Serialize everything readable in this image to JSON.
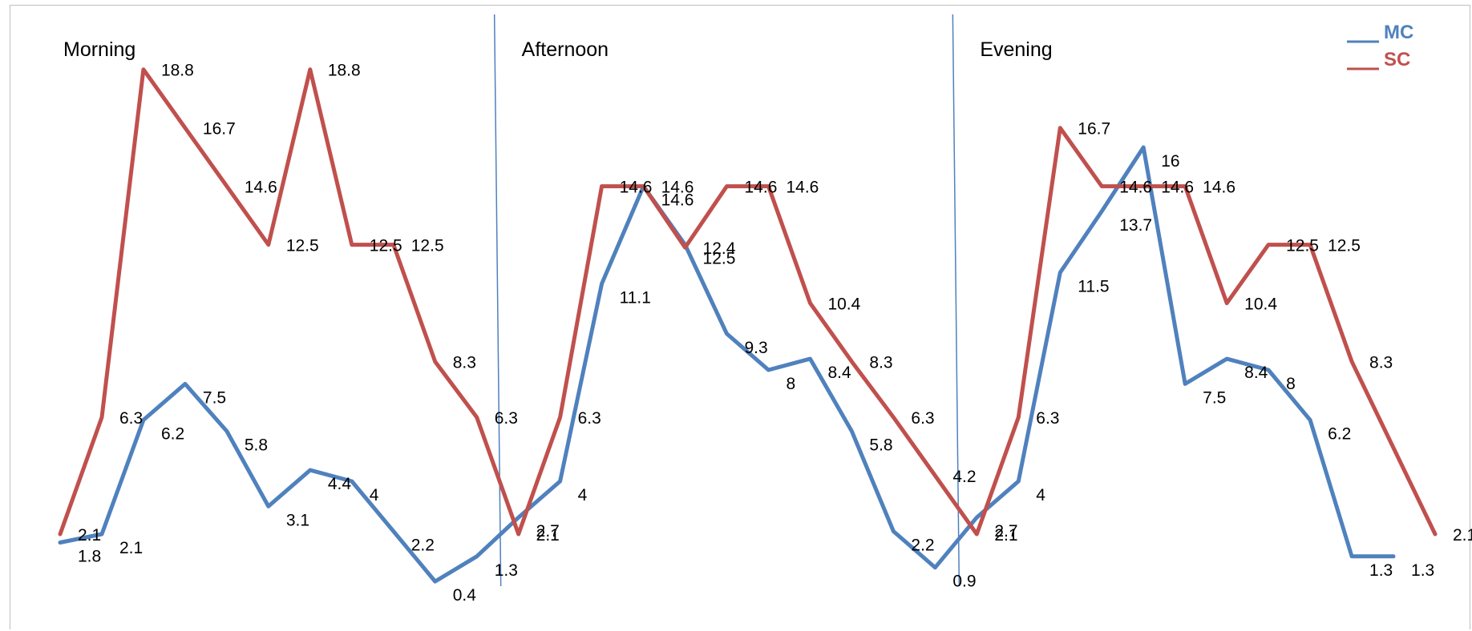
{
  "chart_data": {
    "type": "line",
    "x": [
      1,
      2,
      3,
      4,
      5,
      6,
      7,
      8,
      9,
      10,
      11,
      12,
      13,
      14,
      15,
      16,
      17,
      18,
      19,
      20,
      21,
      22,
      23,
      24,
      25,
      26,
      27,
      28,
      29,
      30,
      31,
      32,
      33,
      34
    ],
    "segments": [
      {
        "label": "Morning",
        "start": 1,
        "end": 11
      },
      {
        "label": "Afternoon",
        "start": 12,
        "end": 22
      },
      {
        "label": "Evening",
        "start": 23,
        "end": 34
      }
    ],
    "series": [
      {
        "name": "MC",
        "color": "#4f81bd",
        "values": [
          1.8,
          2.1,
          6.2,
          7.5,
          5.8,
          3.1,
          4.4,
          4,
          2.2,
          0.4,
          1.3,
          2.7,
          4,
          11.1,
          14.6,
          12.5,
          9.3,
          8,
          8.4,
          5.8,
          2.2,
          0.9,
          2.7,
          4,
          11.5,
          13.7,
          16,
          7.5,
          8.4,
          8,
          6.2,
          1.3,
          1.3
        ],
        "x": [
          1,
          2,
          3,
          4,
          5,
          6,
          7,
          8,
          9,
          10,
          11,
          12,
          13,
          14,
          15,
          16,
          17,
          18,
          19,
          20,
          21,
          22,
          23,
          24,
          25,
          26,
          27,
          28,
          29,
          30,
          31,
          32,
          33
        ]
      },
      {
        "name": "SC",
        "color": "#c0504d",
        "values": [
          2.1,
          6.3,
          18.8,
          16.7,
          14.6,
          12.5,
          18.8,
          12.5,
          12.5,
          8.3,
          6.3,
          2.1,
          6.3,
          14.6,
          14.6,
          12.4,
          14.6,
          14.6,
          10.4,
          8.3,
          6.3,
          4.2,
          2.1,
          6.3,
          16.7,
          14.6,
          14.6,
          14.6,
          10.4,
          12.5,
          12.5,
          8.3,
          2.1
        ],
        "x": [
          1,
          2,
          3,
          4,
          5,
          6,
          7,
          8,
          9,
          10,
          11,
          12,
          13,
          14,
          15,
          16,
          17,
          18,
          19,
          20,
          21,
          22,
          23,
          24,
          25,
          26,
          27,
          28,
          29,
          30,
          31,
          32,
          34
        ]
      }
    ],
    "ylim": [
      0,
      20
    ],
    "grid": false,
    "legend_position": "top-right",
    "title": "",
    "xlabel": "",
    "ylabel": ""
  }
}
